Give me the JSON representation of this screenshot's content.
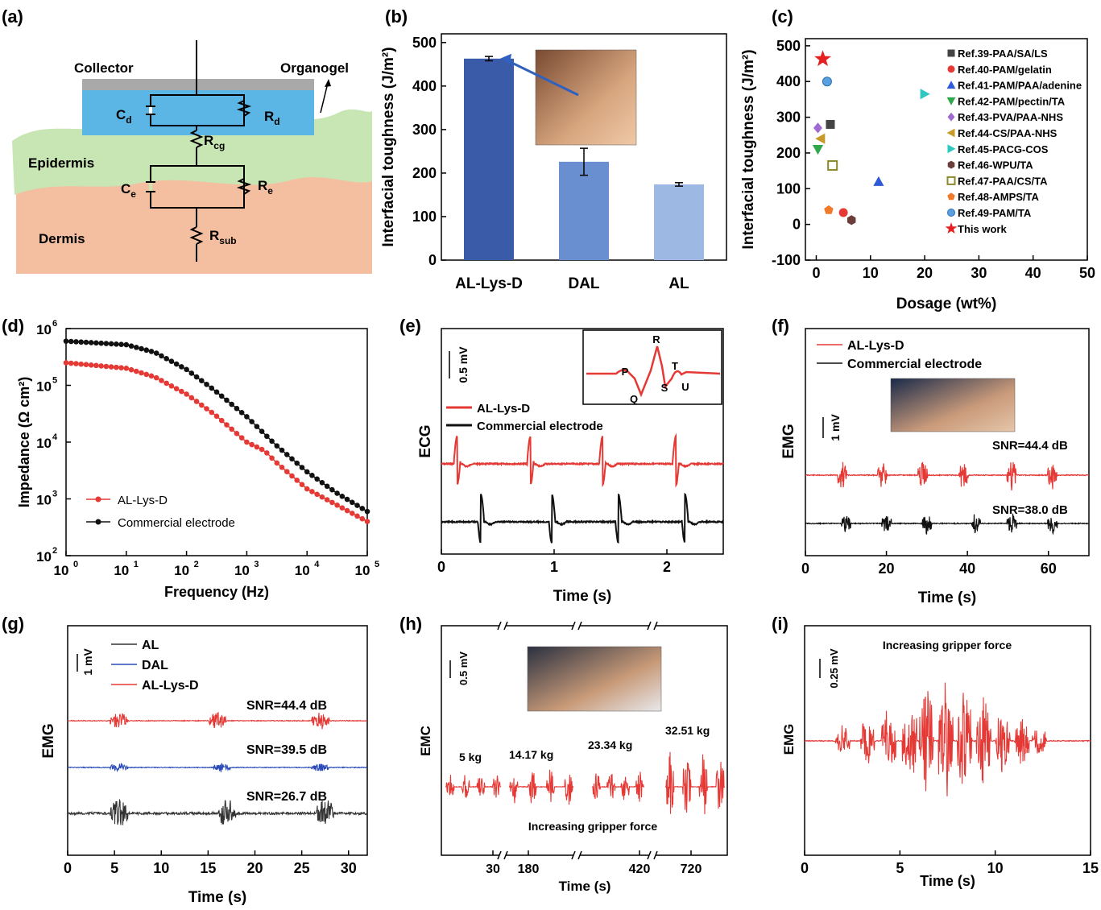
{
  "panels": {
    "a": {
      "letter": "(a)",
      "labels": {
        "collector": "Collector",
        "organogel": "Organogel",
        "epidermis": "Epidermis",
        "dermis": "Dermis"
      },
      "circuit": {
        "cd": "C",
        "cd_sub": "d",
        "rd": "R",
        "rd_sub": "d",
        "rcg": "R",
        "rcg_sub": "cg",
        "ce": "C",
        "ce_sub": "e",
        "re": "R",
        "re_sub": "e",
        "rsub": "R",
        "rsub_sub": "sub"
      }
    },
    "b": {
      "letter": "(b)"
    },
    "c": {
      "letter": "(c)"
    },
    "d": {
      "letter": "(d)"
    },
    "e": {
      "letter": "(e)",
      "scale_bar": "0.5 mV",
      "inset_labels": [
        "P",
        "Q",
        "R",
        "S",
        "T",
        "U"
      ]
    },
    "f": {
      "letter": "(f)",
      "scale_bar": "1 mV"
    },
    "g": {
      "letter": "(g)",
      "scale_bar": "1 mV"
    },
    "h": {
      "letter": "(h)",
      "scale_bar": "0.5 mV"
    },
    "i": {
      "letter": "(i)",
      "scale_bar": "0.25 mV"
    }
  },
  "chart_data": [
    {
      "panel": "b",
      "type": "bar",
      "categories": [
        "AL-Lys-D",
        "DAL",
        "AL"
      ],
      "values": [
        463,
        226,
        174
      ],
      "errors": [
        5,
        31,
        4
      ],
      "colors": [
        "#3a5ba8",
        "#6a8fd0",
        "#9db9e3"
      ],
      "ylabel": "Interfacial toughness (J/m²)",
      "ylim": [
        0,
        520
      ],
      "yticks": [
        0,
        100,
        200,
        300,
        400,
        500
      ]
    },
    {
      "panel": "c",
      "type": "scatter",
      "xlabel": "Dosage (wt%)",
      "ylabel": "Interfacial toughness (J/m²)",
      "xlim": [
        -2,
        50
      ],
      "ylim": [
        -100,
        520
      ],
      "xticks": [
        0,
        10,
        20,
        30,
        40,
        50
      ],
      "yticks": [
        -100,
        0,
        100,
        200,
        300,
        400,
        500
      ],
      "legend_position": "right",
      "series": [
        {
          "name": "Ref.39-PAA/SA/LS",
          "x": 2.6,
          "y": 280,
          "color": "#444444",
          "marker": "square"
        },
        {
          "name": "Ref.40-PAM/gelatin",
          "x": 5,
          "y": 33,
          "color": "#e53935",
          "marker": "circle"
        },
        {
          "name": "Ref.41-PAM/PAA/adenine",
          "x": 11.5,
          "y": 120,
          "color": "#2e5bd8",
          "marker": "triangle-up"
        },
        {
          "name": "Ref.42-PAM/pectin/TA",
          "x": 0.3,
          "y": 210,
          "color": "#2ea84a",
          "marker": "triangle-down"
        },
        {
          "name": "Ref.43-PVA/PAA-NHS",
          "x": 0.3,
          "y": 270,
          "color": "#a06ad0",
          "marker": "diamond"
        },
        {
          "name": "Ref.44-CS/PAA-NHS",
          "x": 0.8,
          "y": 240,
          "color": "#c89a2a",
          "marker": "triangle-left"
        },
        {
          "name": "Ref.45-PACG-COS",
          "x": 20,
          "y": 365,
          "color": "#2ec8c0",
          "marker": "triangle-right"
        },
        {
          "name": "Ref.46-WPU/TA",
          "x": 6.5,
          "y": 12,
          "color": "#6b3e3a",
          "marker": "hexagon"
        },
        {
          "name": "Ref.47-PAA/CS/TA",
          "x": 3,
          "y": 165,
          "color": "#8a8a2a",
          "marker": "square-half"
        },
        {
          "name": "Ref.48-AMPS/TA",
          "x": 2.3,
          "y": 40,
          "color": "#f07a2a",
          "marker": "pentagon"
        },
        {
          "name": "Ref.49-PAM/TA",
          "x": 2,
          "y": 400,
          "color": "#5aa0e0",
          "marker": "sphere"
        },
        {
          "name": "This work",
          "x": 1.2,
          "y": 463,
          "color": "#e52020",
          "marker": "star"
        }
      ]
    },
    {
      "panel": "d",
      "type": "line",
      "xlabel": "Frequency (Hz)",
      "ylabel": "Impedance (Ω cm²)",
      "xscale": "log",
      "yscale": "log",
      "xlim": [
        1,
        100000
      ],
      "ylim": [
        100,
        1000000
      ],
      "xtick_exponents": [
        0,
        1,
        2,
        3,
        4,
        5
      ],
      "ytick_exponents": [
        2,
        3,
        4,
        5,
        6
      ],
      "legend_position": "lower-left",
      "series": [
        {
          "name": "AL-Lys-D",
          "color": "#e53935",
          "x": [
            1,
            10,
            30,
            100,
            300,
            1000,
            2000,
            3000,
            10000,
            30000,
            100000
          ],
          "y": [
            250000,
            200000,
            140000,
            70000,
            30000,
            10000,
            7000,
            4500,
            1500,
            800,
            400
          ]
        },
        {
          "name": "Commercial electrode",
          "color": "#111111",
          "x": [
            1,
            10,
            30,
            100,
            300,
            1000,
            3000,
            10000,
            30000,
            100000
          ],
          "y": [
            600000,
            520000,
            380000,
            190000,
            80000,
            28000,
            9000,
            3000,
            1300,
            600
          ]
        }
      ]
    },
    {
      "panel": "e",
      "type": "line",
      "xlabel": "Time (s)",
      "ylabel": "ECG",
      "xlim": [
        0,
        2.5
      ],
      "xticks": [
        0,
        1,
        2
      ],
      "legend_position": "upper-left",
      "series": [
        {
          "name": "AL-Lys-D",
          "color": "#e53935",
          "peaks": [
            0.14,
            0.79,
            1.43,
            2.08
          ]
        },
        {
          "name": "Commercial electrode",
          "color": "#111111",
          "peaks": [
            0.35,
            0.98,
            1.57,
            2.16
          ]
        }
      ]
    },
    {
      "panel": "f",
      "type": "line",
      "xlabel": "Time (s)",
      "ylabel": "EMG",
      "xlim": [
        0,
        70
      ],
      "xticks": [
        0,
        20,
        40,
        60
      ],
      "legend_position": "upper-left",
      "annotations": [
        "SNR=44.4 dB",
        "SNR=38.0 dB"
      ],
      "series": [
        {
          "name": "AL-Lys-D",
          "color": "#e53935",
          "bursts": [
            9,
            19,
            29,
            39,
            51,
            61
          ]
        },
        {
          "name": "Commercial electrode",
          "color": "#111111",
          "bursts": [
            10,
            20,
            30,
            42,
            51,
            61
          ]
        }
      ]
    },
    {
      "panel": "g",
      "type": "line",
      "xlabel": "Time (s)",
      "ylabel": "EMG",
      "xlim": [
        0,
        32
      ],
      "xticks": [
        0,
        5,
        10,
        15,
        20,
        25,
        30
      ],
      "legend_position": "upper-left",
      "annotations": [
        "SNR=44.4 dB",
        "SNR=39.5 dB",
        "SNR=26.7 dB"
      ],
      "series": [
        {
          "name": "AL",
          "color": "#333333",
          "bursts": [
            5.5,
            17,
            27.5
          ]
        },
        {
          "name": "DAL",
          "color": "#2a4bb8",
          "bursts": [
            5.5,
            16.5,
            27
          ]
        },
        {
          "name": "AL-Lys-D",
          "color": "#e53935",
          "bursts": [
            5.5,
            16,
            27
          ]
        }
      ]
    },
    {
      "panel": "h",
      "type": "line",
      "xlabel": "Time (s)",
      "ylabel": "EMC",
      "xtick_labels": [
        "30",
        "180",
        "420",
        "720"
      ],
      "groups": [
        {
          "label": "5 kg",
          "amplitude": 0.35
        },
        {
          "label": "14.17 kg",
          "amplitude": 0.5
        },
        {
          "label": "23.34 kg",
          "amplitude": 0.45
        },
        {
          "label": "32.51 kg",
          "amplitude": 0.95
        }
      ],
      "annotation": "Increasing gripper force",
      "series": [
        {
          "color": "#e53935"
        }
      ]
    },
    {
      "panel": "i",
      "type": "line",
      "xlabel": "Time (s)",
      "ylabel": "EMG",
      "xlim": [
        0,
        15
      ],
      "xticks": [
        0,
        5,
        10,
        15
      ],
      "annotation": "Increasing gripper force",
      "series": [
        {
          "color": "#e53935",
          "bursts": [
            2,
            3.3,
            4.4,
            5.5,
            6.4,
            7.4,
            8.4,
            9.4,
            10.4,
            11.4,
            12.3
          ]
        }
      ]
    }
  ]
}
